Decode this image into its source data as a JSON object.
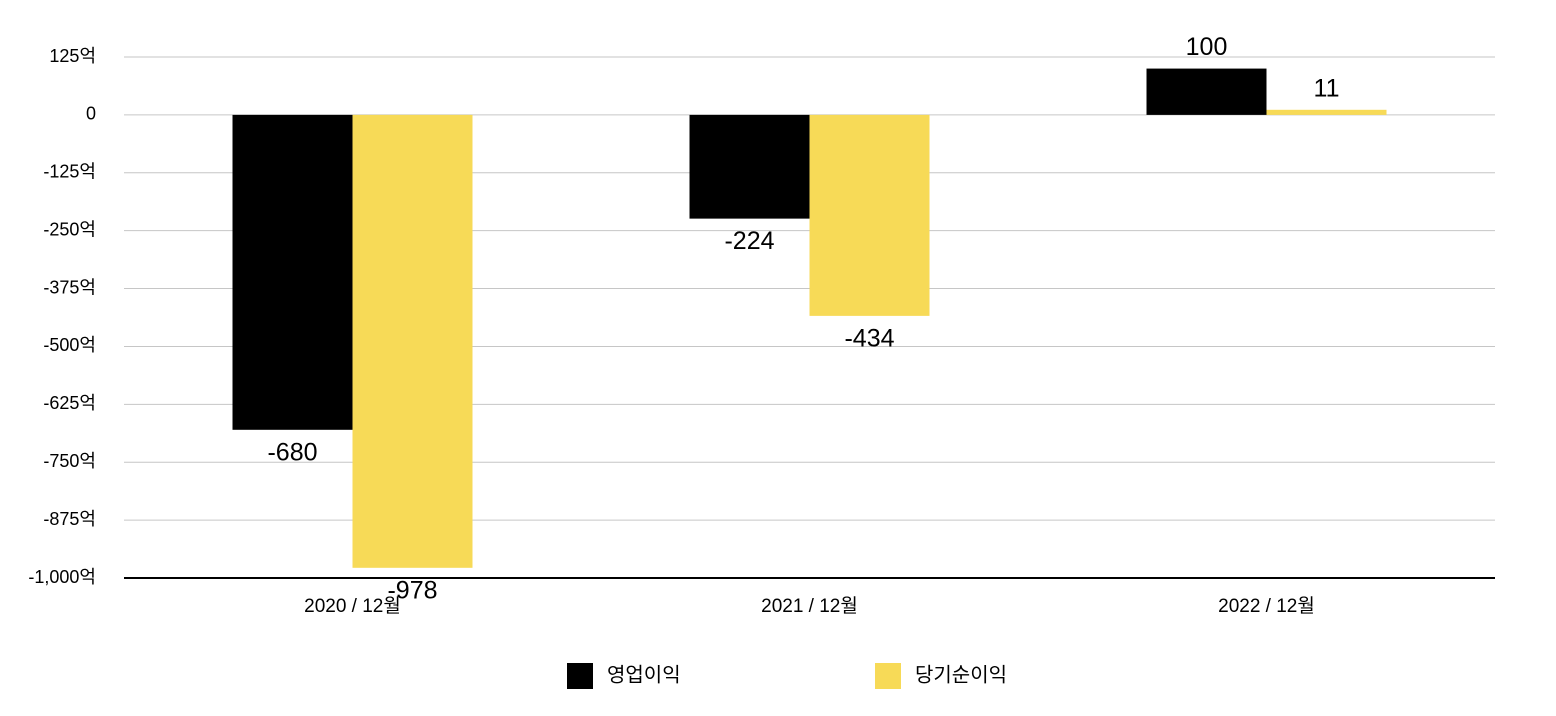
{
  "chart_data": {
    "type": "bar",
    "categories": [
      "2020 / 12월",
      "2021 / 12월",
      "2022 / 12월"
    ],
    "series": [
      {
        "name": "영업이익",
        "color": "#000000",
        "values": [
          -680,
          -224,
          100
        ]
      },
      {
        "name": "당기순이익",
        "color": "#f7da57",
        "values": [
          -978,
          -434,
          11
        ]
      }
    ],
    "ylim": [
      -1000,
      125
    ],
    "yticks": [
      {
        "value": 125,
        "label": "125억"
      },
      0,
      {
        "value": -125,
        "label": "-125억"
      },
      {
        "value": -250,
        "label": "-250억"
      },
      {
        "value": -375,
        "label": "-375억"
      },
      {
        "value": -500,
        "label": "-500억"
      },
      {
        "value": -625,
        "label": "-625억"
      },
      {
        "value": -750,
        "label": "-750억"
      },
      {
        "value": -875,
        "label": "-875억"
      },
      {
        "value": -1000,
        "label": "-1,000억"
      }
    ],
    "grid": true,
    "legend": "bottom"
  }
}
